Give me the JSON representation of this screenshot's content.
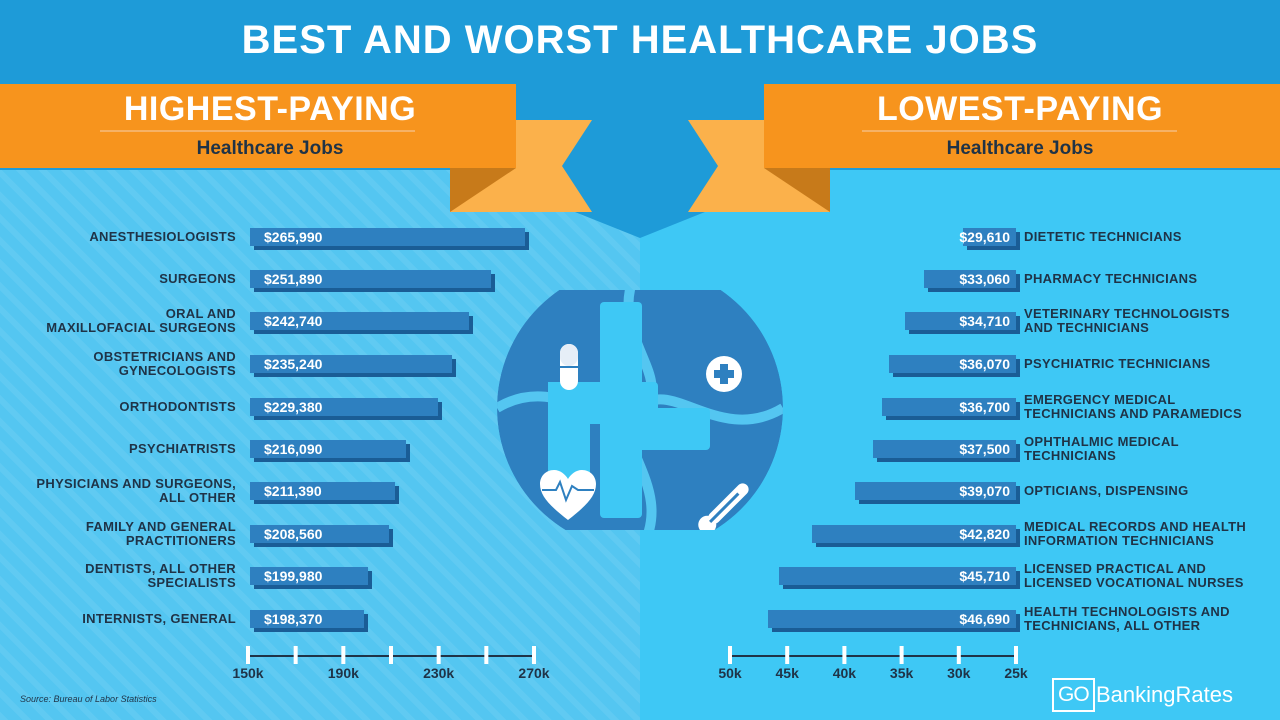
{
  "title": "BEST AND WORST HEALTHCARE JOBS",
  "left_ribbon": {
    "heading": "HIGHEST-PAYING",
    "subheading": "Healthcare Jobs"
  },
  "right_ribbon": {
    "heading": "LOWEST-PAYING",
    "subheading": "Healthcare Jobs"
  },
  "source": "Source: Bureau of Labor Statistics",
  "brand": {
    "go": "GO",
    "name": "BankingRates"
  },
  "emblem_icons": [
    "capsule-icon",
    "medical-cross-icon",
    "heart-monitor-icon",
    "thermometer-icon"
  ],
  "colors": {
    "background_top": "#1e9bd8",
    "panel_left": "#54c6f1",
    "panel_right": "#3ec8f5",
    "ribbon": "#f7941d",
    "bar": "#2e80c0",
    "bar_shadow": "#1a5d96",
    "emblem": "#2e80c0",
    "text_dark": "#1f3347"
  },
  "chart_data": [
    {
      "type": "bar",
      "orientation": "horizontal",
      "title": "HIGHEST-PAYING Healthcare Jobs",
      "categories": [
        [
          "ANESTHESIOLOGISTS"
        ],
        [
          "SURGEONS"
        ],
        [
          "ORAL AND",
          "MAXILLOFACIAL SURGEONS"
        ],
        [
          "OBSTETRICIANS AND",
          "GYNECOLOGISTS"
        ],
        [
          "ORTHODONTISTS"
        ],
        [
          "PSYCHIATRISTS"
        ],
        [
          "PHYSICIANS AND SURGEONS,",
          "ALL OTHER"
        ],
        [
          "FAMILY AND GENERAL",
          "PRACTITIONERS"
        ],
        [
          "DENTISTS, ALL OTHER",
          "SPECIALISTS"
        ],
        [
          "INTERNISTS, GENERAL"
        ]
      ],
      "values": [
        265990,
        251890,
        242740,
        235240,
        229380,
        216090,
        211390,
        208560,
        199980,
        198370
      ],
      "value_labels": [
        "$265,990",
        "$251,890",
        "$242,740",
        "$235,240",
        "$229,380",
        "$216,090",
        "$211,390",
        "$208,560",
        "$199,980",
        "$198,370"
      ],
      "xlim": [
        150000,
        270000
      ],
      "x_ticks": [
        150000,
        170000,
        190000,
        210000,
        230000,
        250000,
        270000
      ],
      "x_tick_labels": [
        "150k",
        "",
        "190k",
        "",
        "230k",
        "",
        "270k"
      ],
      "grid": false
    },
    {
      "type": "bar",
      "orientation": "horizontal",
      "direction": "right-to-left",
      "title": "LOWEST-PAYING Healthcare Jobs",
      "categories": [
        [
          "DIETETIC TECHNICIANS"
        ],
        [
          "PHARMACY TECHNICIANS"
        ],
        [
          "VETERINARY TECHNOLOGISTS",
          "AND TECHNICIANS"
        ],
        [
          "PSYCHIATRIC TECHNICIANS"
        ],
        [
          "EMERGENCY MEDICAL",
          "TECHNICIANS AND PARAMEDICS"
        ],
        [
          "OPHTHALMIC MEDICAL",
          "TECHNICIANS"
        ],
        [
          "OPTICIANS, DISPENSING"
        ],
        [
          "MEDICAL RECORDS AND HEALTH",
          "INFORMATION TECHNICIANS"
        ],
        [
          "LICENSED PRACTICAL AND",
          "LICENSED VOCATIONAL NURSES"
        ],
        [
          "HEALTH TECHNOLOGISTS AND",
          "TECHNICIANS, ALL OTHER"
        ]
      ],
      "values": [
        29610,
        33060,
        34710,
        36070,
        36700,
        37500,
        39070,
        42820,
        45710,
        46690
      ],
      "value_labels": [
        "$29,610",
        "$33,060",
        "$34,710",
        "$36,070",
        "$36,700",
        "$37,500",
        "$39,070",
        "$42,820",
        "$45,710",
        "$46,690"
      ],
      "xlim": [
        25000,
        50000
      ],
      "x_ticks": [
        50000,
        45000,
        40000,
        35000,
        30000,
        25000
      ],
      "x_tick_labels": [
        "50k",
        "45k",
        "40k",
        "35k",
        "30k",
        "25k"
      ],
      "grid": false
    }
  ]
}
